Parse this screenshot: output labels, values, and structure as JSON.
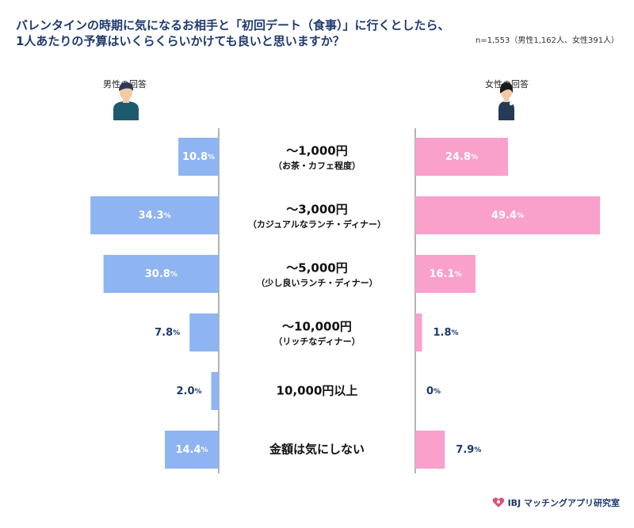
{
  "title_line1": "バレンタインの時期に気になるお相手と「初回デート（食事）」に行くとしたら、",
  "title_line2": "1人あたりの予算はいくらくらいかけても良いと思いますか？",
  "sample_note": "n=1,553（男性1,162人、女性391人）",
  "male_label": "男性の回答",
  "female_label": "女性の回答",
  "footer_brand": "IBJ マッチングアプリ研究室",
  "colors": {
    "male": "#8eb4f2",
    "female": "#f9a0cb",
    "axis": "#9a9a9a",
    "value_dark": "#1e3a6e",
    "value_light": "#ffffff"
  },
  "icons": [
    "male-person-icon",
    "female-person-icon",
    "heart-logo-icon"
  ],
  "chart_data": {
    "type": "bar",
    "orientation": "horizontal-butterfly",
    "categories": [
      {
        "main": "〜1,000円",
        "sub": "（お茶・カフェ程度）"
      },
      {
        "main": "〜3,000円",
        "sub": "（カジュアルなランチ・ディナー）"
      },
      {
        "main": "〜5,000円",
        "sub": "（少し良いランチ・ディナー）"
      },
      {
        "main": "〜10,000円",
        "sub": "（リッチなディナー）"
      },
      {
        "main": "10,000円以上",
        "sub": ""
      },
      {
        "main": "金額は気にしない",
        "sub": ""
      }
    ],
    "series": [
      {
        "name": "男性の回答",
        "values": [
          10.8,
          34.3,
          30.8,
          7.8,
          2.0,
          14.4
        ],
        "labels": [
          "10.8",
          "34.3",
          "30.8",
          "7.8",
          "2.0",
          "14.4"
        ]
      },
      {
        "name": "女性の回答",
        "values": [
          24.8,
          49.4,
          16.1,
          1.8,
          0,
          7.9
        ],
        "labels": [
          "24.8",
          "49.4",
          "16.1",
          "1.8",
          "0",
          "7.9"
        ]
      }
    ],
    "unit": "%"
  }
}
